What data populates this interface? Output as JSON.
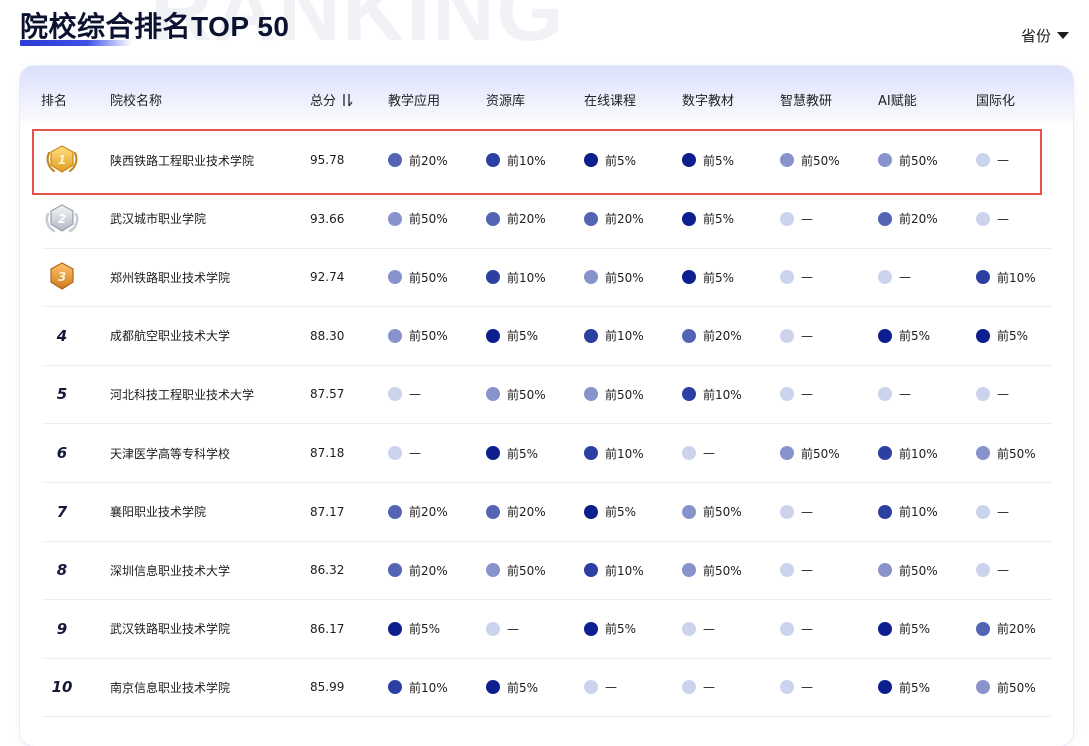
{
  "watermark": "RANKING",
  "title": "院校综合排名TOP 50",
  "province_filter": {
    "label": "省份",
    "icon": "caret-down-icon"
  },
  "columns": {
    "rank": "排名",
    "name": "院校名称",
    "score": "总分",
    "teaching": "教学应用",
    "resources": "资源库",
    "online": "在线课程",
    "textbooks": "数字教材",
    "research": "智慧教研",
    "ai": "AI赋能",
    "intl": "国际化"
  },
  "score_sort_icon": "sort-descending-icon",
  "level_colors": {
    "前5%": "#0d1f8f",
    "前10%": "#2c3fa3",
    "前20%": "#5364b4",
    "前50%": "#8893cc",
    "—": "#ccd3ec"
  },
  "rows": [
    {
      "rank": "1",
      "medal": "gold-medal-icon",
      "name": "陕西铁路工程职业技术学院",
      "score": "95.78",
      "teaching": "前20%",
      "resources": "前10%",
      "online": "前5%",
      "textbooks": "前5%",
      "research": "前50%",
      "ai": "前50%",
      "intl": "—"
    },
    {
      "rank": "2",
      "medal": "silver-medal-icon",
      "name": "武汉城市职业学院",
      "score": "93.66",
      "teaching": "前50%",
      "resources": "前20%",
      "online": "前20%",
      "textbooks": "前5%",
      "research": "—",
      "ai": "前20%",
      "intl": "—"
    },
    {
      "rank": "3",
      "medal": "bronze-medal-icon",
      "name": "郑州铁路职业技术学院",
      "score": "92.74",
      "teaching": "前50%",
      "resources": "前10%",
      "online": "前50%",
      "textbooks": "前5%",
      "research": "—",
      "ai": "—",
      "intl": "前10%"
    },
    {
      "rank": "4",
      "name": "成都航空职业技术大学",
      "score": "88.30",
      "teaching": "前50%",
      "resources": "前5%",
      "online": "前10%",
      "textbooks": "前20%",
      "research": "—",
      "ai": "前5%",
      "intl": "前5%"
    },
    {
      "rank": "5",
      "name": "河北科技工程职业技术大学",
      "score": "87.57",
      "teaching": "—",
      "resources": "前50%",
      "online": "前50%",
      "textbooks": "前10%",
      "research": "—",
      "ai": "—",
      "intl": "—"
    },
    {
      "rank": "6",
      "name": "天津医学高等专科学校",
      "score": "87.18",
      "teaching": "—",
      "resources": "前5%",
      "online": "前10%",
      "textbooks": "—",
      "research": "前50%",
      "ai": "前10%",
      "intl": "前50%"
    },
    {
      "rank": "7",
      "name": "襄阳职业技术学院",
      "score": "87.17",
      "teaching": "前20%",
      "resources": "前20%",
      "online": "前5%",
      "textbooks": "前50%",
      "research": "—",
      "ai": "前10%",
      "intl": "—"
    },
    {
      "rank": "8",
      "name": "深圳信息职业技术大学",
      "score": "86.32",
      "teaching": "前20%",
      "resources": "前50%",
      "online": "前10%",
      "textbooks": "前50%",
      "research": "—",
      "ai": "前50%",
      "intl": "—"
    },
    {
      "rank": "9",
      "name": "武汉铁路职业技术学院",
      "score": "86.17",
      "teaching": "前5%",
      "resources": "—",
      "online": "前5%",
      "textbooks": "—",
      "research": "—",
      "ai": "前5%",
      "intl": "前20%"
    },
    {
      "rank": "10",
      "name": "南京信息职业技术学院",
      "score": "85.99",
      "teaching": "前10%",
      "resources": "前5%",
      "online": "—",
      "textbooks": "—",
      "research": "—",
      "ai": "前5%",
      "intl": "前50%"
    }
  ]
}
